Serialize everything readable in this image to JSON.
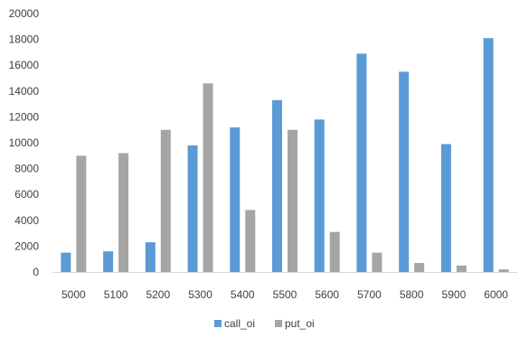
{
  "chart_data": {
    "type": "bar",
    "categories": [
      "5000",
      "5100",
      "5200",
      "5300",
      "5400",
      "5500",
      "5600",
      "5700",
      "5800",
      "5900",
      "6000"
    ],
    "series": [
      {
        "name": "call_oi",
        "values": [
          1500,
          1600,
          2300,
          9800,
          11200,
          13300,
          11800,
          16900,
          15500,
          9900,
          18100
        ],
        "color": "#5b9bd5"
      },
      {
        "name": "put_oi",
        "values": [
          9000,
          9200,
          11000,
          14600,
          4800,
          11000,
          3100,
          1500,
          700,
          500,
          200
        ],
        "color": "#a5a5a5"
      }
    ],
    "yticks": [
      "0",
      "2000",
      "4000",
      "6000",
      "8000",
      "10000",
      "12000",
      "14000",
      "16000",
      "18000",
      "20000"
    ],
    "ylim": [
      0,
      20000
    ],
    "grid": false,
    "legend_position": "bottom"
  }
}
